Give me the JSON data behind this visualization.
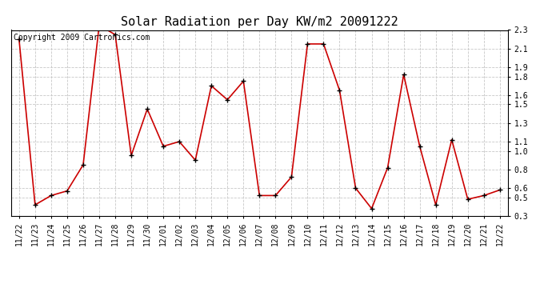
{
  "title": "Solar Radiation per Day KW/m2 20091222",
  "copyright": "Copyright 2009 Cartronics.com",
  "labels": [
    "11/22",
    "11/23",
    "11/24",
    "11/25",
    "11/26",
    "11/27",
    "11/28",
    "11/29",
    "11/30",
    "12/01",
    "12/02",
    "12/03",
    "12/04",
    "12/05",
    "12/06",
    "12/07",
    "12/08",
    "12/09",
    "12/10",
    "12/11",
    "12/12",
    "12/13",
    "12/14",
    "12/15",
    "12/16",
    "12/17",
    "12/18",
    "12/19",
    "12/20",
    "12/21",
    "12/22"
  ],
  "values": [
    2.2,
    0.42,
    0.52,
    0.57,
    0.85,
    2.35,
    2.25,
    0.95,
    1.45,
    1.05,
    1.1,
    0.9,
    1.7,
    1.55,
    1.75,
    0.52,
    0.52,
    0.72,
    2.15,
    2.15,
    1.65,
    0.6,
    0.38,
    0.82,
    1.82,
    1.05,
    0.42,
    1.12,
    0.48,
    0.52,
    0.58
  ],
  "line_color": "#cc0000",
  "marker": "+",
  "marker_color": "#000000",
  "background_color": "#ffffff",
  "grid_color": "#c8c8c8",
  "ylim": [
    0.3,
    2.3
  ],
  "yticks": [
    0.3,
    0.5,
    0.6,
    0.8,
    1.0,
    1.1,
    1.3,
    1.5,
    1.6,
    1.8,
    1.9,
    2.1,
    2.3
  ],
  "title_fontsize": 11,
  "copyright_fontsize": 7,
  "tick_fontsize": 7
}
